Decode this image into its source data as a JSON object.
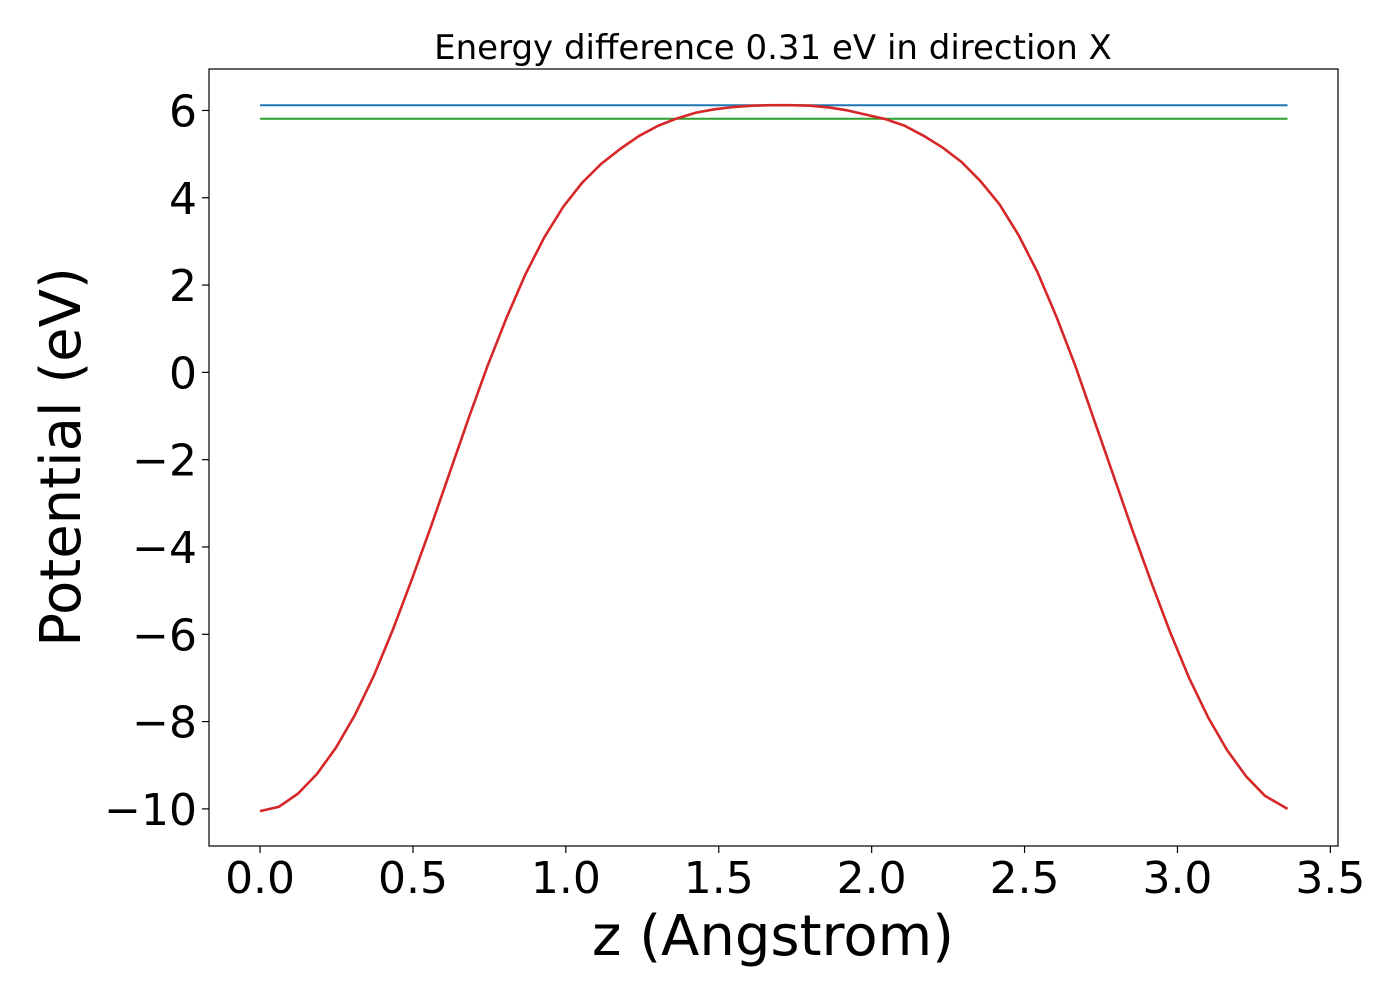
{
  "chart_data": {
    "type": "line",
    "title": "Energy difference 0.31 eV in direction X",
    "xlabel": "z (Angstrom)",
    "ylabel": "Potential (eV)",
    "xlim": [
      -0.167,
      3.525
    ],
    "ylim": [
      -10.85,
      6.95
    ],
    "xticks": [
      0.0,
      0.5,
      1.0,
      1.5,
      2.0,
      2.5,
      3.0,
      3.5
    ],
    "xtick_labels": [
      "0.0",
      "0.5",
      "1.0",
      "1.5",
      "2.0",
      "2.5",
      "3.0",
      "3.5"
    ],
    "yticks": [
      -10,
      -8,
      -6,
      -4,
      -2,
      0,
      2,
      4,
      6
    ],
    "ytick_labels": [
      "−10",
      "−8",
      "−6",
      "−4",
      "−2",
      "0",
      "2",
      "4",
      "6"
    ],
    "grid": false,
    "series": [
      {
        "color": "#1f77b4",
        "x": [
          0.0,
          3.36
        ],
        "y": [
          6.12,
          6.12
        ]
      },
      {
        "color": "#2ca02c",
        "x": [
          0.0,
          3.36
        ],
        "y": [
          5.81,
          5.81
        ]
      },
      {
        "color": "#d62728",
        "x": [
          0.0,
          0.062,
          0.124,
          0.186,
          0.248,
          0.31,
          0.372,
          0.434,
          0.496,
          0.558,
          0.62,
          0.682,
          0.744,
          0.806,
          0.868,
          0.93,
          0.992,
          1.054,
          1.116,
          1.178,
          1.24,
          1.302,
          1.364,
          1.426,
          1.488,
          1.55,
          1.612,
          1.674,
          1.736,
          1.798,
          1.86,
          1.922,
          1.984,
          2.046,
          2.108,
          2.17,
          2.232,
          2.294,
          2.356,
          2.418,
          2.48,
          2.542,
          2.604,
          2.666,
          2.728,
          2.79,
          2.852,
          2.914,
          2.976,
          3.038,
          3.1,
          3.162,
          3.224,
          3.286,
          3.36
        ],
        "y": [
          -10.05,
          -9.95,
          -9.65,
          -9.2,
          -8.6,
          -7.85,
          -6.95,
          -5.9,
          -4.75,
          -3.55,
          -2.3,
          -1.05,
          0.15,
          1.25,
          2.25,
          3.1,
          3.8,
          4.35,
          4.78,
          5.12,
          5.42,
          5.65,
          5.82,
          5.95,
          6.03,
          6.08,
          6.11,
          6.12,
          6.12,
          6.11,
          6.07,
          6.0,
          5.9,
          5.8,
          5.65,
          5.42,
          5.15,
          4.82,
          4.38,
          3.85,
          3.15,
          2.3,
          1.28,
          0.15,
          -1.1,
          -2.35,
          -3.6,
          -4.8,
          -5.95,
          -7.0,
          -7.9,
          -8.65,
          -9.25,
          -9.7,
          -10.0
        ]
      }
    ]
  }
}
